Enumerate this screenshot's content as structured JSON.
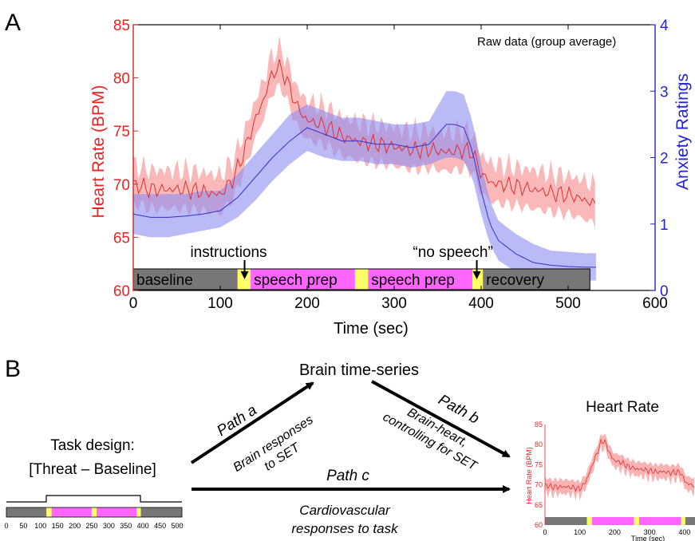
{
  "panel_a": {
    "label": "A",
    "annotation": "Raw data (group average)",
    "y_left_label": "Heart Rate (BPM)",
    "y_right_label": "Anxiety Ratings",
    "x_label": "Time (sec)",
    "x_ticks": [
      "0",
      "100",
      "200",
      "300",
      "400",
      "500",
      "600"
    ],
    "y_left_ticks": [
      "60",
      "65",
      "70",
      "75",
      "80",
      "85"
    ],
    "y_right_ticks": [
      "0",
      "1",
      "2",
      "3",
      "4"
    ],
    "phases": [
      {
        "label": "baseline",
        "start": 0,
        "end": 120,
        "color": "#777777"
      },
      {
        "label": "",
        "start": 120,
        "end": 135,
        "color": "#ffff66"
      },
      {
        "label": "speech prep",
        "start": 135,
        "end": 255,
        "color": "#ff66ff"
      },
      {
        "label": "",
        "start": 255,
        "end": 270,
        "color": "#ffff66"
      },
      {
        "label": "speech prep",
        "start": 270,
        "end": 390,
        "color": "#ff66ff"
      },
      {
        "label": "",
        "start": 390,
        "end": 402,
        "color": "#ffff66"
      },
      {
        "label": "recovery",
        "start": 402,
        "end": 525,
        "color": "#777777"
      }
    ],
    "events": [
      {
        "label": "instructions",
        "time": 128
      },
      {
        "label": "“no speech”",
        "time": 395
      }
    ]
  },
  "panel_b": {
    "label": "B",
    "brain_title": "Brain time-series",
    "task_title_1": "Task design:",
    "task_title_2": "[Threat – Baseline]",
    "path_a": "Path a",
    "path_a_desc_1": "Brain responses",
    "path_a_desc_2": "to SET",
    "path_b": "Path b",
    "path_b_desc_1": "Brain-heart,",
    "path_b_desc_2": "controlling for SET",
    "path_c": "Path c",
    "path_c_desc_1": "Cardiovascular",
    "path_c_desc_2": "responses to task",
    "task_ticks": [
      "0",
      "50",
      "100",
      "150",
      "200",
      "250",
      "300",
      "350",
      "400",
      "450",
      "500"
    ],
    "inset_title": "Heart Rate",
    "inset_ylabel": "Heart Rate (BPM)",
    "inset_xlabel": "Time (sec)",
    "inset_y_ticks": [
      "60",
      "65",
      "70",
      "75",
      "80",
      "85"
    ],
    "inset_x_ticks": [
      "0",
      "100",
      "200",
      "300",
      "400"
    ]
  },
  "colors": {
    "heart_line": "#e03030",
    "heart_band": "#f8a0a0",
    "anxiety_line": "#3333cc",
    "anxiety_band": "#8c8cf0",
    "left_axis": "#ee2222",
    "right_axis": "#2222dd",
    "gray_phase": "#777777",
    "pink_phase": "#ff66ff",
    "yellow_phase": "#ffff66"
  },
  "chart_data": [
    {
      "type": "line",
      "x_label": "Time (sec)",
      "xlim": [
        0,
        600
      ],
      "ylim_left": [
        60,
        85
      ],
      "ylim_right": [
        0,
        4
      ],
      "grid": false,
      "series": [
        {
          "name": "Heart Rate (BPM)",
          "axis": "left",
          "x": [
            0,
            20,
            40,
            60,
            80,
            100,
            115,
            125,
            140,
            150,
            160,
            170,
            180,
            190,
            200,
            220,
            240,
            260,
            280,
            300,
            320,
            340,
            360,
            380,
            390,
            400,
            410,
            420,
            440,
            460,
            480,
            500,
            520,
            532
          ],
          "y": [
            70,
            69.5,
            69.5,
            69.5,
            69.3,
            69,
            70.5,
            72.5,
            76,
            78,
            80.5,
            81,
            79,
            77,
            76,
            75.5,
            74.5,
            74,
            73.8,
            73.5,
            73.2,
            73.3,
            73,
            73.2,
            73,
            71,
            70.2,
            70,
            69.8,
            69.5,
            69.2,
            69,
            68.5,
            68
          ],
          "band": 1.8
        },
        {
          "name": "Anxiety Ratings",
          "axis": "right",
          "x": [
            0,
            20,
            40,
            60,
            80,
            100,
            120,
            140,
            160,
            180,
            200,
            220,
            240,
            260,
            280,
            300,
            320,
            340,
            360,
            370,
            380,
            390,
            400,
            410,
            420,
            440,
            460,
            480,
            500,
            520,
            532
          ],
          "y": [
            1.15,
            1.1,
            1.1,
            1.12,
            1.15,
            1.2,
            1.4,
            1.7,
            2.0,
            2.25,
            2.45,
            2.35,
            2.25,
            2.25,
            2.2,
            2.2,
            2.15,
            2.2,
            2.5,
            2.5,
            2.45,
            2.1,
            1.5,
            1.0,
            0.75,
            0.55,
            0.42,
            0.38,
            0.36,
            0.35,
            0.35
          ],
          "band_lo": [
            0.85,
            0.8,
            0.8,
            0.85,
            0.9,
            0.95,
            1.1,
            1.35,
            1.65,
            1.9,
            2.1,
            2.0,
            1.95,
            1.95,
            1.9,
            1.9,
            1.85,
            1.9,
            2.0,
            2.0,
            1.95,
            1.7,
            1.15,
            0.7,
            0.45,
            0.28,
            0.2,
            0.16,
            0.15,
            0.15,
            0.15
          ],
          "band_hi": [
            1.45,
            1.45,
            1.45,
            1.45,
            1.5,
            1.5,
            1.75,
            2.05,
            2.35,
            2.65,
            2.8,
            2.7,
            2.6,
            2.6,
            2.55,
            2.5,
            2.5,
            2.55,
            3.0,
            3.0,
            2.95,
            2.55,
            1.9,
            1.35,
            1.05,
            0.85,
            0.7,
            0.6,
            0.58,
            0.56,
            0.56
          ]
        }
      ]
    },
    {
      "type": "line",
      "title": "Heart Rate",
      "x_label": "Time (sec)",
      "y_label": "Heart Rate (BPM)",
      "xlim": [
        0,
        430
      ],
      "ylim": [
        60,
        85
      ],
      "series": [
        {
          "name": "Heart Rate",
          "x": [
            0,
            20,
            40,
            60,
            80,
            100,
            115,
            125,
            140,
            150,
            160,
            170,
            180,
            190,
            200,
            220,
            240,
            260,
            280,
            300,
            320,
            340,
            360,
            380,
            390,
            400,
            410,
            420,
            430
          ],
          "y": [
            70,
            69.5,
            69.5,
            69.5,
            69.3,
            69,
            70.5,
            72.5,
            76,
            78,
            80.5,
            81,
            79,
            77,
            76,
            75.5,
            74.5,
            74,
            73.8,
            73.5,
            73.2,
            73.3,
            73,
            73.2,
            73,
            71,
            70.2,
            70,
            69.8
          ],
          "band": 1.8
        }
      ]
    }
  ]
}
